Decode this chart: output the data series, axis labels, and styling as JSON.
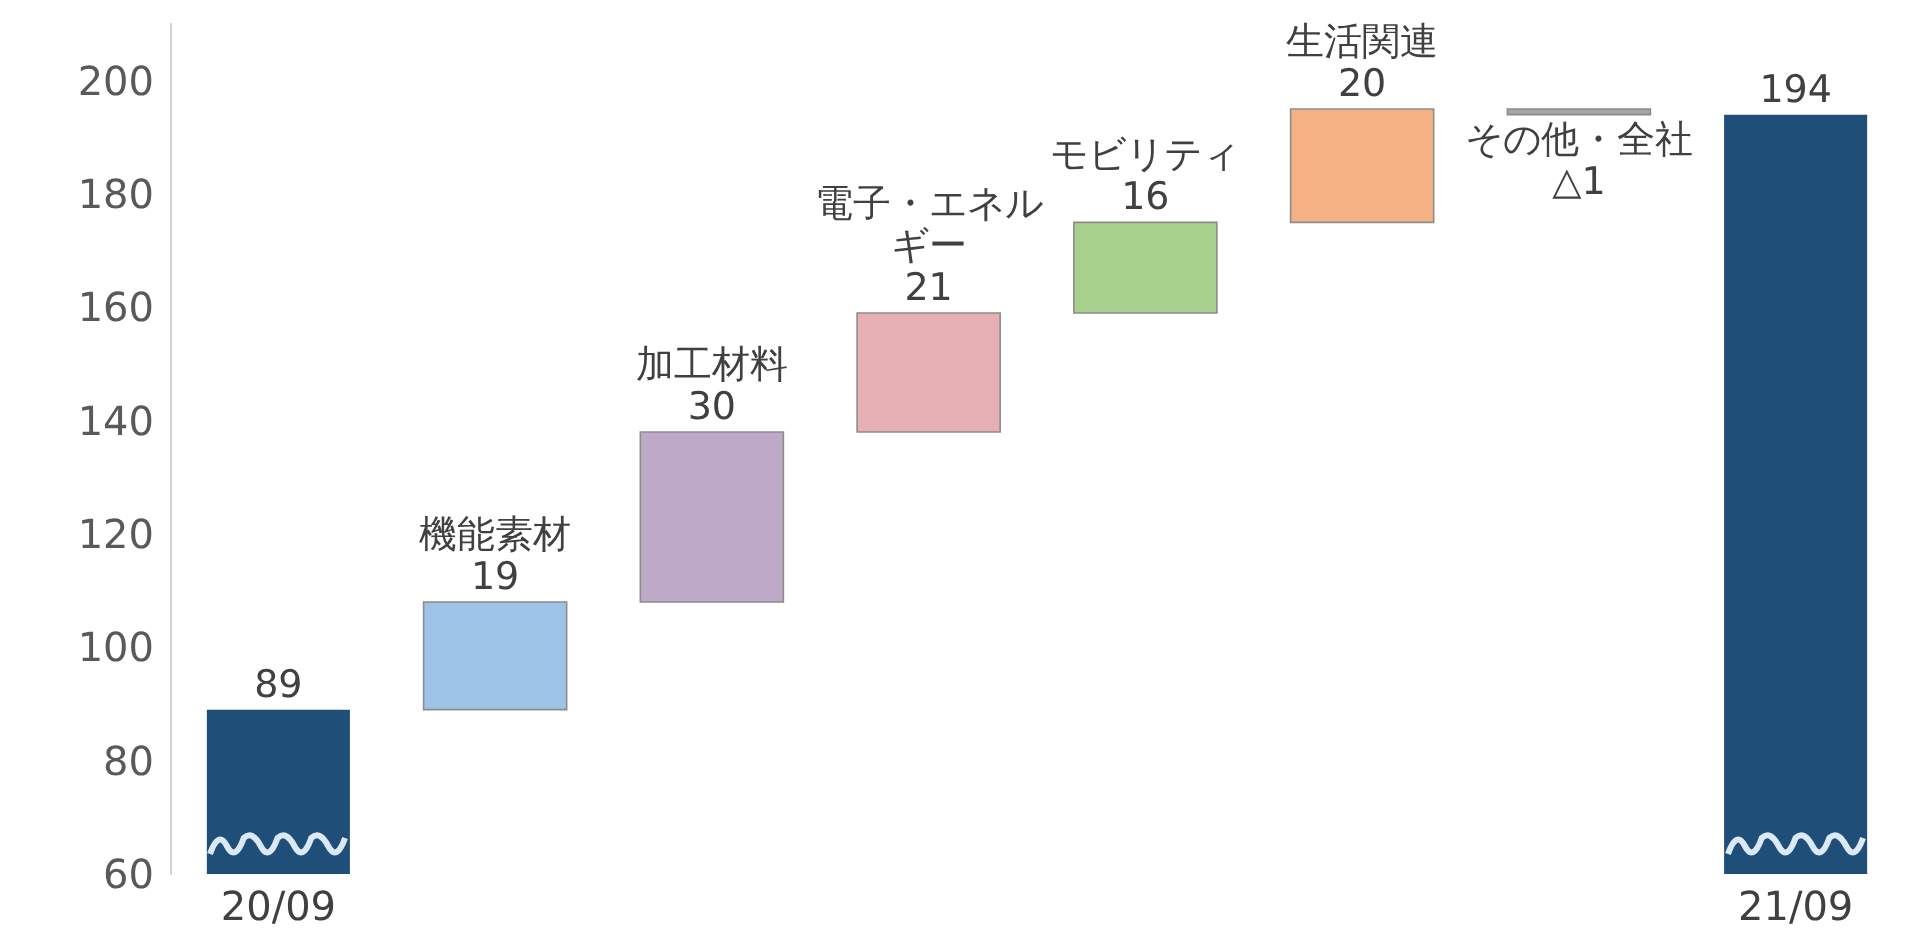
{
  "chart_data": {
    "type": "bar",
    "categories": [
      "20/09",
      "機能素材",
      "加工材料",
      "電子・エネルギー",
      "モビリティ",
      "生活関連",
      "その他・全社",
      "21/09"
    ],
    "values": [
      89,
      19,
      30,
      21,
      16,
      20,
      -1,
      194
    ],
    "base": [
      null,
      89,
      108,
      138,
      159,
      175,
      195,
      null
    ],
    "colors": [
      "#1f4e79",
      "#9dc3e6",
      "#bfa9c9",
      "#e6afb4",
      "#a9d18e",
      "#f4b183",
      "#a6a6a6",
      "#1f4e79"
    ],
    "value_labels": [
      "89",
      "19",
      "30",
      "21",
      "16",
      "20",
      "△1",
      "194"
    ],
    "ylim": [
      60,
      210
    ],
    "yticks": [
      60,
      80,
      100,
      120,
      140,
      160,
      180,
      200
    ],
    "grid": false
  }
}
